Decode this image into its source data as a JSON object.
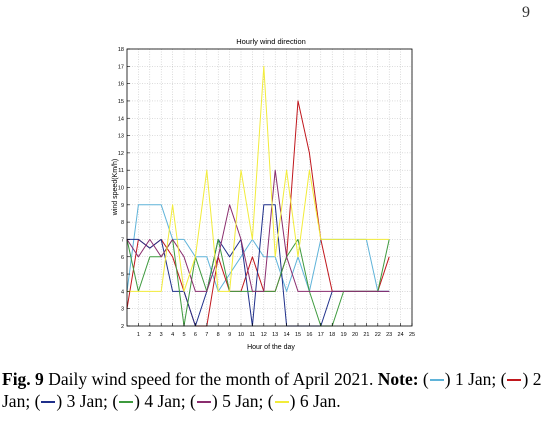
{
  "chart_data": {
    "type": "line",
    "title": "Hourly wind direction",
    "xlabel": "Hour of the day",
    "ylabel": "wind speed(Km/h)",
    "xlim": [
      0,
      25
    ],
    "ylim": [
      2,
      18
    ],
    "xticks": [
      1,
      2,
      3,
      4,
      5,
      6,
      7,
      8,
      9,
      10,
      11,
      12,
      13,
      14,
      15,
      16,
      17,
      18,
      19,
      20,
      21,
      22,
      23,
      24,
      25
    ],
    "yticks": [
      2,
      3,
      4,
      5,
      6,
      7,
      8,
      9,
      10,
      11,
      12,
      13,
      14,
      15,
      16,
      17,
      18
    ],
    "grid": true,
    "legend": "in caption",
    "x": [
      0,
      1,
      2,
      3,
      4,
      5,
      6,
      7,
      8,
      9,
      10,
      11,
      12,
      13,
      14,
      15,
      16,
      17,
      18,
      19,
      20,
      21,
      22,
      23
    ],
    "series": [
      {
        "name": "1 Jan",
        "color": "#5fb3d9",
        "values": [
          4,
          9,
          9,
          9,
          7,
          7,
          6,
          6,
          4,
          5,
          6,
          7,
          6,
          6,
          4,
          6,
          4,
          7,
          7,
          7,
          7,
          7,
          4,
          4
        ]
      },
      {
        "name": "2 Jan",
        "color": "#c0171d",
        "values": [
          3,
          7,
          6.5,
          7,
          6,
          4,
          2,
          2,
          6,
          4,
          4,
          6,
          4,
          4,
          6,
          15,
          12,
          7,
          4,
          4,
          4,
          4,
          4,
          6
        ]
      },
      {
        "name": "3 Jan",
        "color": "#1f2f8a",
        "values": [
          7,
          7,
          6.5,
          7,
          4,
          4,
          2,
          4,
          7,
          6,
          7,
          2,
          9,
          9,
          2,
          2,
          2,
          2,
          4,
          4,
          4,
          4,
          4,
          4
        ]
      },
      {
        "name": "4 Jan",
        "color": "#3e9a3e",
        "values": [
          7,
          4,
          6,
          6,
          7,
          2,
          6,
          4,
          7,
          4,
          4,
          4,
          4,
          4,
          6,
          7,
          4,
          2,
          2,
          4,
          4,
          4,
          4,
          7
        ]
      },
      {
        "name": "5 Jan",
        "color": "#8a2d6e",
        "values": [
          7,
          6,
          7,
          6,
          7,
          6,
          4,
          4,
          6,
          9,
          7,
          4,
          4,
          11,
          6,
          4,
          4,
          4,
          4,
          4,
          4,
          4,
          4,
          4
        ]
      },
      {
        "name": "6 Jan",
        "color": "#f2ec3a",
        "values": [
          4,
          4,
          4,
          4,
          9,
          4,
          6,
          11,
          4,
          4,
          11,
          7,
          17,
          6,
          11,
          6,
          11,
          7,
          7,
          7,
          7,
          7,
          7,
          7
        ]
      }
    ]
  },
  "page": {
    "number": "9"
  },
  "caption": {
    "fig_label": "Fig. 9",
    "text": " Daily wind speed for the month of April 2021. ",
    "note_label": "Note:",
    "open_paren": " (",
    "close_paren": ")",
    "entries": [
      " 1 Jan;",
      " 2 Jan;",
      " 3 Jan;",
      " 4 Jan;",
      " 5 Jan;",
      " 6 Jan."
    ]
  }
}
